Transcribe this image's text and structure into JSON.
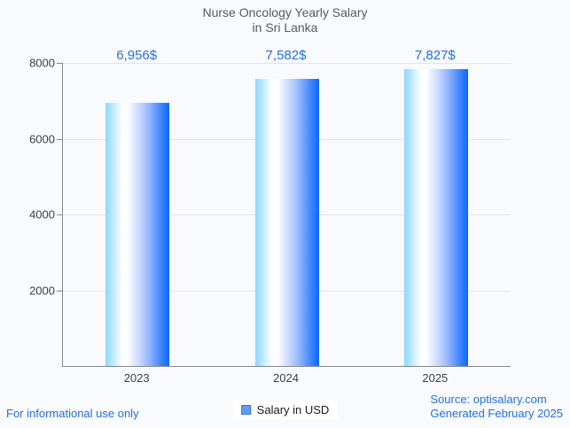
{
  "title": {
    "line1": "Nurse Oncology Yearly Salary",
    "line2": "in Sri Lanka"
  },
  "chart_data": {
    "type": "bar",
    "categories": [
      "2023",
      "2024",
      "2025"
    ],
    "values": [
      6956,
      7582,
      7827
    ],
    "value_labels": [
      "6,956$",
      "7,582$",
      "7,827$"
    ],
    "series_name": "Salary in USD",
    "title": "Nurse Oncology Yearly Salary in Sri Lanka",
    "xlabel": "",
    "ylabel": "",
    "ylim": [
      0,
      8000
    ],
    "yticks": [
      2000,
      4000,
      6000,
      8000
    ],
    "grid": true,
    "legend_position": "bottom",
    "bar_gradient": [
      "#8cd8fd",
      "#ffffff",
      "#0968fb"
    ]
  },
  "legend": {
    "label": "Salary in USD",
    "marker_color": "#5e9df3"
  },
  "footer": {
    "left": "For informational use only",
    "source": "Source: optisalary.com",
    "generated": "Generated February 2025"
  },
  "colors": {
    "background": "#f8fafd",
    "title_text": "#58595d",
    "value_label_text": "#2470dd",
    "footer_text": "#2470dd",
    "axis_line": "#85888c",
    "gridline": "#e3e5e9",
    "tick_text": "#3c4043"
  }
}
